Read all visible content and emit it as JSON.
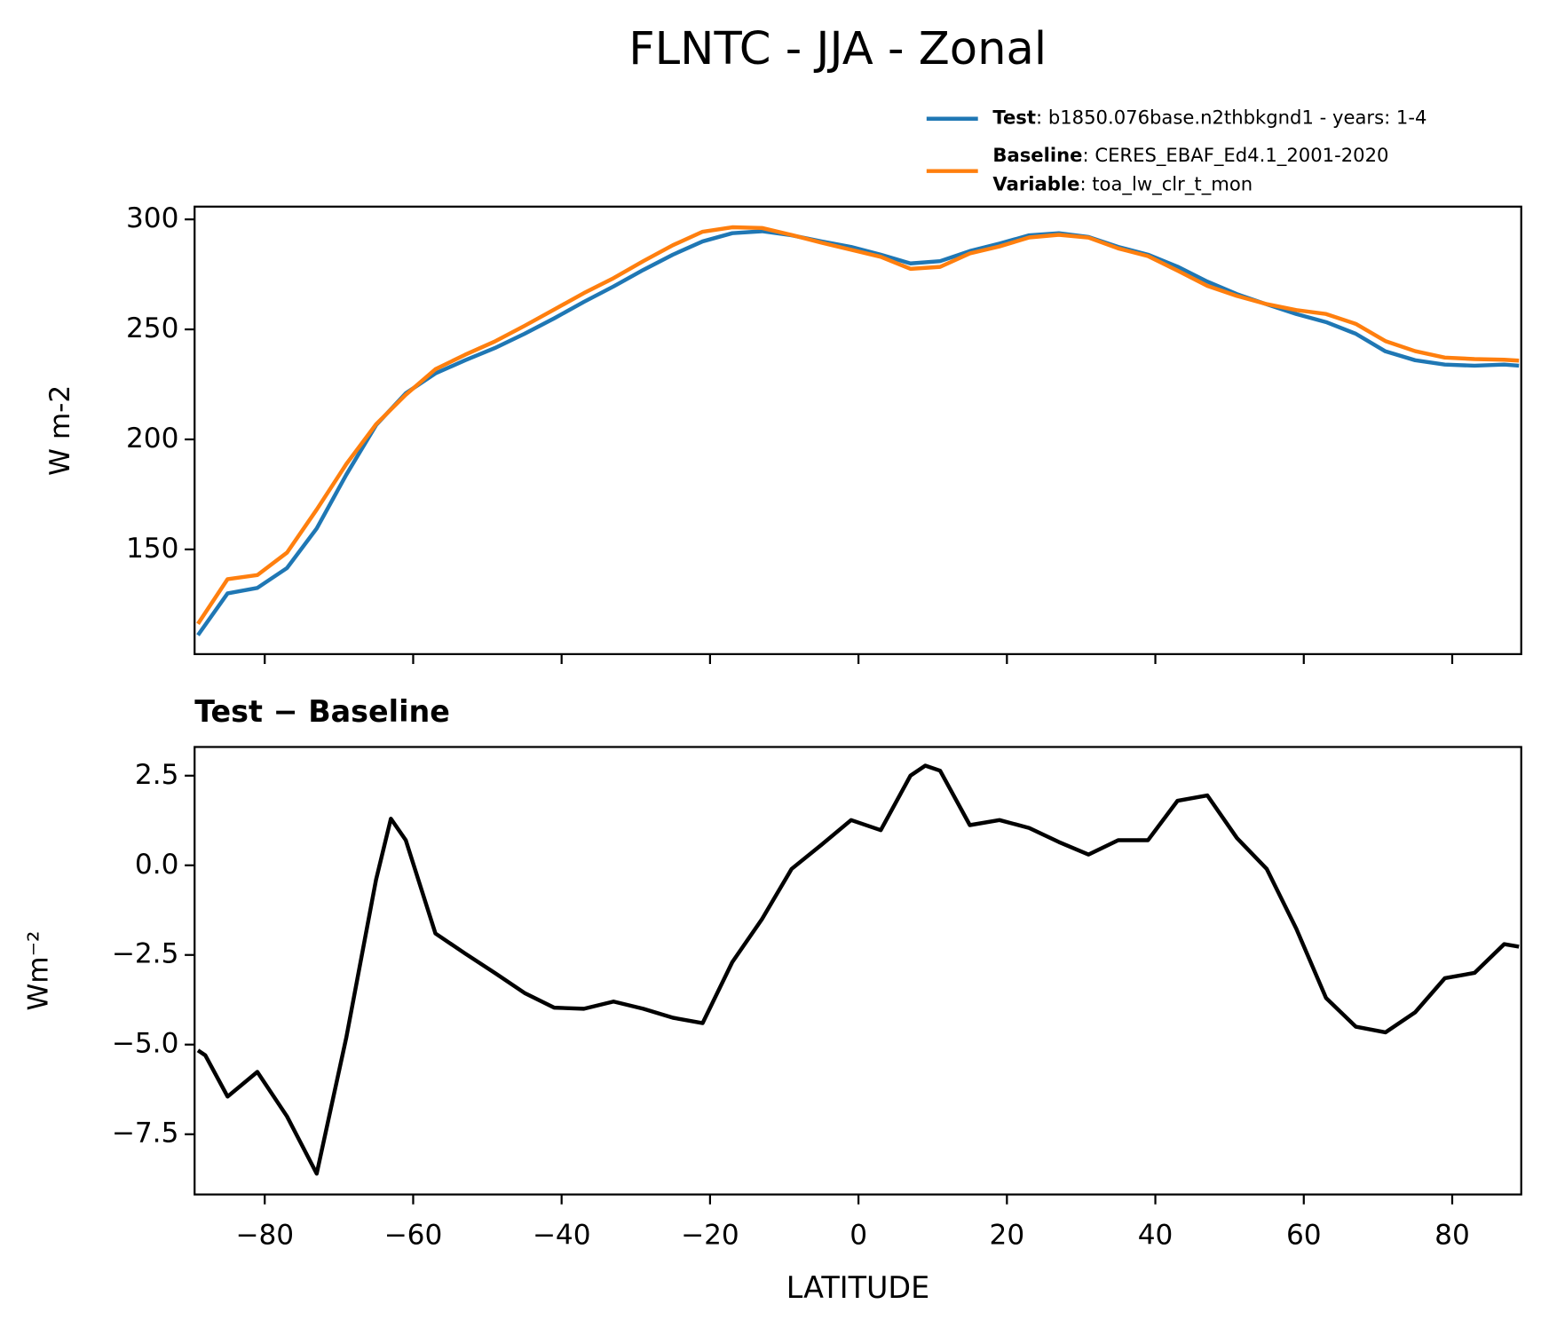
{
  "title": "FLNTC - JJA - Zonal",
  "chart_data": [
    {
      "type": "line",
      "ylabel": "W m-2",
      "x": [
        -89,
        -85,
        -81,
        -77,
        -73,
        -69,
        -65,
        -61,
        -57,
        -53,
        -49,
        -45,
        -41,
        -37,
        -33,
        -29,
        -25,
        -21,
        -17,
        -13,
        -9,
        -5,
        -1,
        3,
        7,
        11,
        15,
        19,
        23,
        27,
        31,
        35,
        39,
        43,
        47,
        51,
        55,
        59,
        63,
        67,
        71,
        75,
        79,
        83,
        87,
        89
      ],
      "series": [
        {
          "name": "Test",
          "legend_detail": ": b1850.076base.n2thbkgnd1 - years: 1-4",
          "color": "#1f77b4",
          "values": [
            111,
            130,
            132.5,
            141.5,
            159.5,
            184,
            206.5,
            221,
            230,
            236,
            241.5,
            248,
            255,
            262.5,
            269.5,
            277,
            284,
            290,
            293.7,
            294.6,
            292.8,
            290,
            287.5,
            284,
            280,
            281,
            285.6,
            289,
            292.8,
            293.7,
            292,
            287.5,
            284,
            278.5,
            271.7,
            266,
            261.4,
            257,
            253.3,
            248,
            240,
            236,
            234,
            233.5,
            234,
            233.5
          ]
        },
        {
          "name": "Baseline",
          "legend_detail": ": CERES_EBAF_Ed4.1_2001-2020",
          "color": "#ff7f0e",
          "values": [
            116.2,
            136.5,
            138.3,
            148.5,
            168.1,
            188.8,
            206.9,
            220.3,
            231.9,
            238.5,
            244.5,
            251.6,
            259,
            266.5,
            273.3,
            281,
            288.3,
            294.4,
            296.4,
            296.1,
            292.9,
            289.4,
            286.2,
            283,
            277.5,
            278.4,
            284.5,
            287.7,
            291.8,
            293,
            291.7,
            286.8,
            283.3,
            276.7,
            269.8,
            265.2,
            261.5,
            258.8,
            257,
            252.5,
            244.7,
            240.1,
            237.2,
            236.5,
            236.2,
            235.8
          ]
        }
      ],
      "legend_extra": {
        "key": "Variable",
        "text": ": toa_lw_clr_t_mon"
      },
      "xlim": [
        -89.45,
        89.3
      ],
      "xticks": [
        -80,
        -60,
        -40,
        -20,
        0,
        20,
        40,
        60,
        80
      ],
      "xtick_labels": false,
      "ylim": [
        102.4,
        305.8
      ],
      "yticks": [
        150,
        200,
        250,
        300
      ]
    },
    {
      "type": "line",
      "title": "Test − Baseline",
      "ylabel": "Wm⁻²",
      "xlabel": "LATITUDE",
      "x": [
        -89,
        -88,
        -85,
        -81,
        -77,
        -73,
        -69,
        -65,
        -63,
        -61,
        -57,
        -53,
        -49,
        -45,
        -41,
        -37,
        -33,
        -29,
        -25,
        -21,
        -17,
        -13,
        -9,
        -5,
        -1,
        3,
        7,
        9,
        11,
        15,
        19,
        23,
        27,
        31,
        35,
        39,
        43,
        47,
        51,
        55,
        59,
        63,
        67,
        71,
        75,
        79,
        83,
        87,
        89
      ],
      "series": [
        {
          "name": "Test − Baseline",
          "color": "#000000",
          "values": [
            -5.16,
            -5.3,
            -6.45,
            -5.76,
            -7.0,
            -8.6,
            -4.8,
            -0.4,
            1.3,
            0.7,
            -1.9,
            -2.46,
            -3.0,
            -3.56,
            -3.97,
            -4.0,
            -3.8,
            -4.0,
            -4.25,
            -4.4,
            -2.7,
            -1.5,
            -0.1,
            0.57,
            1.26,
            0.98,
            2.5,
            2.78,
            2.64,
            1.12,
            1.26,
            1.04,
            0.65,
            0.3,
            0.7,
            0.7,
            1.8,
            1.95,
            0.76,
            -0.1,
            -1.77,
            -3.7,
            -4.5,
            -4.66,
            -4.1,
            -3.15,
            -3.0,
            -2.2,
            -2.27
          ]
        }
      ],
      "xlim": [
        -89.45,
        89.3
      ],
      "xticks": [
        {
          "value": -80,
          "label": "−80"
        },
        {
          "value": -60,
          "label": "−60"
        },
        {
          "value": -40,
          "label": "−40"
        },
        {
          "value": -20,
          "label": "−20"
        },
        0,
        20,
        40,
        60,
        80
      ],
      "ylim": [
        -9.18,
        3.3
      ],
      "yticks": [
        2.5,
        {
          "value": 0,
          "label": "0.0"
        },
        {
          "value": -2.5,
          "label": "−2.5"
        },
        {
          "value": -5,
          "label": "−5.0"
        },
        {
          "value": -7.5,
          "label": "−7.5"
        }
      ]
    }
  ]
}
